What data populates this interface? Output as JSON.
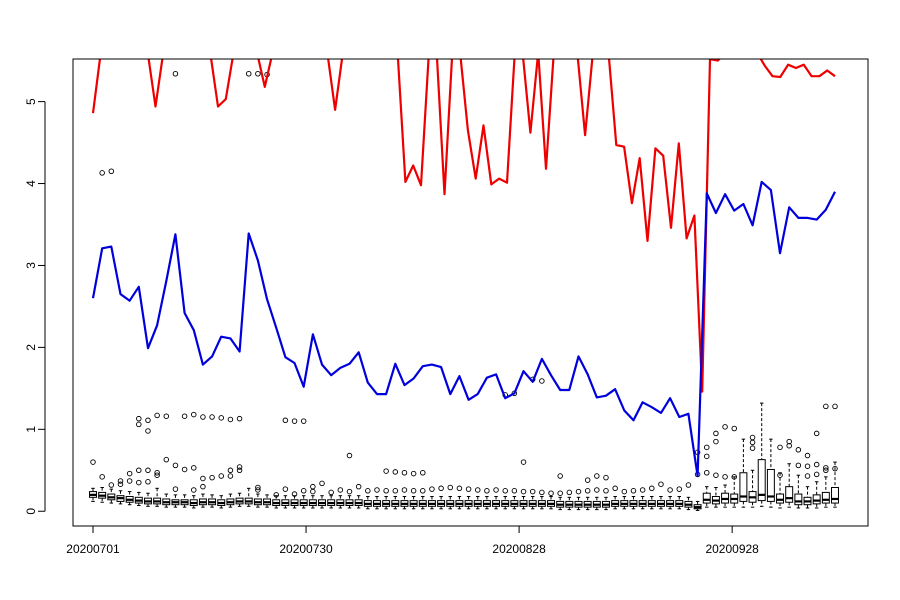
{
  "chart_data": {
    "type": "line",
    "title": "",
    "xlabel": "",
    "ylabel": "",
    "ylim": [
      -0.18,
      5.52
    ],
    "xlim": [
      1,
      102
    ],
    "x_tick_labels": [
      {
        "x": 1,
        "label": "20200701"
      },
      {
        "x": 30,
        "label": "20200730"
      },
      {
        "x": 59,
        "label": "20200828"
      },
      {
        "x": 88,
        "label": "20200928"
      }
    ],
    "y_ticks": [
      0,
      1,
      2,
      3,
      4,
      5
    ],
    "grid": false,
    "colors": {
      "red_series": "#ee0000",
      "blue_series": "#0000dd",
      "boxes": "#000000"
    },
    "series": [
      {
        "color": "#ee0000",
        "values": [
          4.86,
          5.6,
          5.6,
          5.6,
          5.6,
          5.6,
          5.6,
          5.6,
          4.94,
          5.6,
          5.6,
          5.6,
          5.6,
          5.6,
          5.6,
          5.6,
          4.94,
          5.03,
          5.6,
          5.6,
          5.6,
          5.6,
          5.18,
          5.6,
          5.6,
          5.6,
          5.6,
          5.6,
          5.6,
          5.6,
          5.6,
          4.9,
          5.6,
          5.6,
          5.6,
          5.6,
          5.6,
          5.6,
          5.6,
          5.6,
          4.02,
          4.22,
          3.98,
          5.6,
          5.6,
          3.87,
          5.6,
          5.6,
          4.65,
          4.06,
          4.71,
          3.99,
          4.06,
          4.01,
          5.6,
          5.6,
          4.62,
          5.6,
          4.18,
          5.6,
          5.6,
          5.6,
          5.6,
          4.59,
          5.6,
          5.6,
          5.6,
          4.47,
          4.45,
          3.76,
          4.31,
          3.3,
          4.43,
          4.34,
          3.46,
          4.49,
          3.33,
          3.61,
          1.46,
          5.52,
          5.5,
          5.6,
          5.6,
          5.53,
          5.6,
          5.6,
          5.44,
          5.31,
          5.3,
          5.45,
          5.41,
          5.45,
          5.31,
          5.31,
          5.38,
          5.31
        ]
      },
      {
        "color": "#0000dd",
        "values": [
          2.6,
          3.21,
          3.23,
          2.65,
          2.57,
          2.74,
          1.99,
          2.27,
          2.81,
          3.38,
          2.42,
          2.21,
          1.79,
          1.89,
          2.13,
          2.11,
          1.95,
          3.39,
          3.06,
          2.59,
          2.24,
          1.88,
          1.81,
          1.52,
          2.16,
          1.79,
          1.66,
          1.75,
          1.8,
          1.94,
          1.57,
          1.43,
          1.43,
          1.8,
          1.54,
          1.62,
          1.77,
          1.79,
          1.76,
          1.43,
          1.65,
          1.36,
          1.43,
          1.63,
          1.67,
          1.38,
          1.44,
          1.71,
          1.58,
          1.86,
          1.66,
          1.48,
          1.48,
          1.89,
          1.67,
          1.39,
          1.41,
          1.49,
          1.23,
          1.11,
          1.33,
          1.27,
          1.2,
          1.38,
          1.15,
          1.19,
          0.43,
          3.88,
          3.64,
          3.87,
          3.67,
          3.75,
          3.49,
          4.02,
          3.92,
          3.15,
          3.71,
          3.58,
          3.58,
          3.56,
          3.68,
          3.9
        ]
      }
    ],
    "boxes": [
      {
        "median": 0.2,
        "q1": 0.17,
        "q3": 0.24,
        "lo": 0.12,
        "hi": 0.28,
        "out": [
          0.6
        ]
      },
      {
        "median": 0.19,
        "q1": 0.16,
        "q3": 0.23,
        "lo": 0.11,
        "hi": 0.29,
        "out": [
          4.13,
          0.42
        ]
      },
      {
        "median": 0.17,
        "q1": 0.14,
        "q3": 0.21,
        "lo": 0.1,
        "hi": 0.27,
        "out": [
          4.15,
          0.32
        ]
      },
      {
        "median": 0.16,
        "q1": 0.12,
        "q3": 0.19,
        "lo": 0.09,
        "hi": 0.25,
        "out": [
          0.33,
          0.37
        ]
      },
      {
        "median": 0.14,
        "q1": 0.11,
        "q3": 0.18,
        "lo": 0.08,
        "hi": 0.24,
        "out": [
          0.46,
          0.37
        ]
      },
      {
        "median": 0.13,
        "q1": 0.1,
        "q3": 0.17,
        "lo": 0.07,
        "hi": 0.23,
        "out": [
          1.13,
          1.06,
          0.5,
          0.35
        ]
      },
      {
        "median": 0.12,
        "q1": 0.09,
        "q3": 0.16,
        "lo": 0.06,
        "hi": 0.22,
        "out": [
          1.11,
          0.98,
          0.5,
          0.36
        ]
      },
      {
        "median": 0.12,
        "q1": 0.09,
        "q3": 0.16,
        "lo": 0.06,
        "hi": 0.28,
        "out": [
          1.17,
          0.44,
          0.47
        ]
      },
      {
        "median": 0.11,
        "q1": 0.08,
        "q3": 0.15,
        "lo": 0.05,
        "hi": 0.21,
        "out": [
          1.16,
          0.63
        ]
      },
      {
        "median": 0.11,
        "q1": 0.08,
        "q3": 0.14,
        "lo": 0.05,
        "hi": 0.2,
        "out": [
          5.34,
          0.56,
          0.27
        ]
      },
      {
        "median": 0.11,
        "q1": 0.08,
        "q3": 0.14,
        "lo": 0.05,
        "hi": 0.2,
        "out": [
          1.16,
          0.51
        ]
      },
      {
        "median": 0.1,
        "q1": 0.07,
        "q3": 0.14,
        "lo": 0.04,
        "hi": 0.19,
        "out": [
          1.18,
          0.53,
          0.26
        ]
      },
      {
        "median": 0.11,
        "q1": 0.08,
        "q3": 0.15,
        "lo": 0.05,
        "hi": 0.21,
        "out": [
          1.15,
          0.4,
          0.3
        ]
      },
      {
        "median": 0.11,
        "q1": 0.08,
        "q3": 0.15,
        "lo": 0.05,
        "hi": 0.2,
        "out": [
          1.15,
          0.41
        ]
      },
      {
        "median": 0.1,
        "q1": 0.07,
        "q3": 0.14,
        "lo": 0.04,
        "hi": 0.19,
        "out": [
          1.14,
          0.43
        ]
      },
      {
        "median": 0.11,
        "q1": 0.08,
        "q3": 0.15,
        "lo": 0.05,
        "hi": 0.21,
        "out": [
          1.12,
          0.5,
          0.43
        ]
      },
      {
        "median": 0.12,
        "q1": 0.09,
        "q3": 0.16,
        "lo": 0.06,
        "hi": 0.22,
        "out": [
          1.13,
          0.54,
          0.5
        ]
      },
      {
        "median": 0.12,
        "q1": 0.09,
        "q3": 0.16,
        "lo": 0.06,
        "hi": 0.28,
        "out": [
          5.34
        ]
      },
      {
        "median": 0.11,
        "q1": 0.08,
        "q3": 0.15,
        "lo": 0.05,
        "hi": 0.21,
        "out": [
          5.34,
          0.29,
          0.26
        ]
      },
      {
        "median": 0.11,
        "q1": 0.08,
        "q3": 0.15,
        "lo": 0.05,
        "hi": 0.2,
        "out": [
          5.33
        ]
      },
      {
        "median": 0.1,
        "q1": 0.07,
        "q3": 0.14,
        "lo": 0.04,
        "hi": 0.19,
        "out": [
          0.2
        ]
      },
      {
        "median": 0.1,
        "q1": 0.07,
        "q3": 0.14,
        "lo": 0.04,
        "hi": 0.19,
        "out": [
          1.11,
          0.27
        ]
      },
      {
        "median": 0.1,
        "q1": 0.07,
        "q3": 0.14,
        "lo": 0.04,
        "hi": 0.19,
        "out": [
          1.1,
          0.21
        ]
      },
      {
        "median": 0.1,
        "q1": 0.07,
        "q3": 0.14,
        "lo": 0.04,
        "hi": 0.19,
        "out": [
          1.1,
          0.25
        ]
      },
      {
        "median": 0.1,
        "q1": 0.07,
        "q3": 0.14,
        "lo": 0.04,
        "hi": 0.19,
        "out": [
          0.3,
          0.24
        ]
      },
      {
        "median": 0.1,
        "q1": 0.07,
        "q3": 0.14,
        "lo": 0.04,
        "hi": 0.19,
        "out": [
          0.34
        ]
      },
      {
        "median": 0.1,
        "q1": 0.07,
        "q3": 0.14,
        "lo": 0.04,
        "hi": 0.19,
        "out": [
          0.23
        ]
      },
      {
        "median": 0.1,
        "q1": 0.07,
        "q3": 0.14,
        "lo": 0.04,
        "hi": 0.19,
        "out": [
          0.26
        ]
      },
      {
        "median": 0.1,
        "q1": 0.07,
        "q3": 0.14,
        "lo": 0.04,
        "hi": 0.19,
        "out": [
          0.68,
          0.24
        ]
      },
      {
        "median": 0.1,
        "q1": 0.07,
        "q3": 0.14,
        "lo": 0.04,
        "hi": 0.19,
        "out": [
          0.3
        ]
      },
      {
        "median": 0.09,
        "q1": 0.06,
        "q3": 0.13,
        "lo": 0.03,
        "hi": 0.18,
        "out": [
          0.25
        ]
      },
      {
        "median": 0.09,
        "q1": 0.06,
        "q3": 0.13,
        "lo": 0.03,
        "hi": 0.18,
        "out": [
          0.26
        ]
      },
      {
        "median": 0.09,
        "q1": 0.06,
        "q3": 0.13,
        "lo": 0.03,
        "hi": 0.18,
        "out": [
          0.49,
          0.25
        ]
      },
      {
        "median": 0.09,
        "q1": 0.06,
        "q3": 0.13,
        "lo": 0.03,
        "hi": 0.18,
        "out": [
          0.48,
          0.25
        ]
      },
      {
        "median": 0.09,
        "q1": 0.06,
        "q3": 0.13,
        "lo": 0.03,
        "hi": 0.18,
        "out": [
          0.47,
          0.26
        ]
      },
      {
        "median": 0.09,
        "q1": 0.06,
        "q3": 0.13,
        "lo": 0.03,
        "hi": 0.18,
        "out": [
          0.46,
          0.25
        ]
      },
      {
        "median": 0.09,
        "q1": 0.06,
        "q3": 0.13,
        "lo": 0.03,
        "hi": 0.18,
        "out": [
          0.47,
          0.25
        ]
      },
      {
        "median": 0.09,
        "q1": 0.06,
        "q3": 0.13,
        "lo": 0.03,
        "hi": 0.18,
        "out": [
          0.27
        ]
      },
      {
        "median": 0.09,
        "q1": 0.06,
        "q3": 0.13,
        "lo": 0.03,
        "hi": 0.18,
        "out": [
          0.28
        ]
      },
      {
        "median": 0.09,
        "q1": 0.06,
        "q3": 0.13,
        "lo": 0.03,
        "hi": 0.18,
        "out": [
          0.29
        ]
      },
      {
        "median": 0.09,
        "q1": 0.06,
        "q3": 0.13,
        "lo": 0.03,
        "hi": 0.18,
        "out": [
          0.28
        ]
      },
      {
        "median": 0.09,
        "q1": 0.06,
        "q3": 0.13,
        "lo": 0.03,
        "hi": 0.18,
        "out": [
          0.27
        ]
      },
      {
        "median": 0.09,
        "q1": 0.06,
        "q3": 0.13,
        "lo": 0.03,
        "hi": 0.18,
        "out": [
          0.26
        ]
      },
      {
        "median": 0.09,
        "q1": 0.06,
        "q3": 0.13,
        "lo": 0.03,
        "hi": 0.18,
        "out": [
          0.25
        ]
      },
      {
        "median": 0.09,
        "q1": 0.06,
        "q3": 0.13,
        "lo": 0.03,
        "hi": 0.18,
        "out": [
          0.26
        ]
      },
      {
        "median": 0.09,
        "q1": 0.06,
        "q3": 0.13,
        "lo": 0.03,
        "hi": 0.18,
        "out": [
          1.42,
          0.25
        ]
      },
      {
        "median": 0.09,
        "q1": 0.06,
        "q3": 0.13,
        "lo": 0.03,
        "hi": 0.18,
        "out": [
          1.44,
          0.25
        ]
      },
      {
        "median": 0.09,
        "q1": 0.06,
        "q3": 0.13,
        "lo": 0.03,
        "hi": 0.18,
        "out": [
          0.6,
          0.24
        ]
      },
      {
        "median": 0.09,
        "q1": 0.06,
        "q3": 0.13,
        "lo": 0.03,
        "hi": 0.18,
        "out": [
          1.61,
          0.24
        ]
      },
      {
        "median": 0.09,
        "q1": 0.06,
        "q3": 0.13,
        "lo": 0.03,
        "hi": 0.18,
        "out": [
          1.59,
          0.23
        ]
      },
      {
        "median": 0.09,
        "q1": 0.06,
        "q3": 0.13,
        "lo": 0.03,
        "hi": 0.18,
        "out": [
          0.22
        ]
      },
      {
        "median": 0.08,
        "q1": 0.05,
        "q3": 0.12,
        "lo": 0.02,
        "hi": 0.17,
        "out": [
          0.43,
          0.22
        ]
      },
      {
        "median": 0.08,
        "q1": 0.05,
        "q3": 0.12,
        "lo": 0.02,
        "hi": 0.17,
        "out": [
          0.23
        ]
      },
      {
        "median": 0.08,
        "q1": 0.05,
        "q3": 0.12,
        "lo": 0.02,
        "hi": 0.17,
        "out": [
          0.24
        ]
      },
      {
        "median": 0.08,
        "q1": 0.05,
        "q3": 0.12,
        "lo": 0.02,
        "hi": 0.17,
        "out": [
          0.38,
          0.25
        ]
      },
      {
        "median": 0.08,
        "q1": 0.05,
        "q3": 0.12,
        "lo": 0.02,
        "hi": 0.17,
        "out": [
          0.43,
          0.26
        ]
      },
      {
        "median": 0.08,
        "q1": 0.05,
        "q3": 0.12,
        "lo": 0.02,
        "hi": 0.17,
        "out": [
          0.41,
          0.25
        ]
      },
      {
        "median": 0.09,
        "q1": 0.06,
        "q3": 0.13,
        "lo": 0.03,
        "hi": 0.18,
        "out": [
          0.28
        ]
      },
      {
        "median": 0.09,
        "q1": 0.06,
        "q3": 0.13,
        "lo": 0.03,
        "hi": 0.18,
        "out": [
          0.24
        ]
      },
      {
        "median": 0.09,
        "q1": 0.06,
        "q3": 0.13,
        "lo": 0.03,
        "hi": 0.18,
        "out": [
          0.25
        ]
      },
      {
        "median": 0.09,
        "q1": 0.06,
        "q3": 0.13,
        "lo": 0.03,
        "hi": 0.18,
        "out": [
          0.26
        ]
      },
      {
        "median": 0.09,
        "q1": 0.06,
        "q3": 0.13,
        "lo": 0.03,
        "hi": 0.18,
        "out": [
          0.28
        ]
      },
      {
        "median": 0.09,
        "q1": 0.06,
        "q3": 0.13,
        "lo": 0.03,
        "hi": 0.18,
        "out": [
          0.33
        ]
      },
      {
        "median": 0.09,
        "q1": 0.06,
        "q3": 0.13,
        "lo": 0.03,
        "hi": 0.18,
        "out": [
          0.26
        ]
      },
      {
        "median": 0.09,
        "q1": 0.06,
        "q3": 0.13,
        "lo": 0.03,
        "hi": 0.18,
        "out": [
          0.27
        ]
      },
      {
        "median": 0.08,
        "q1": 0.05,
        "q3": 0.12,
        "lo": 0.02,
        "hi": 0.17,
        "out": [
          0.32
        ]
      },
      {
        "median": 0.05,
        "q1": 0.03,
        "q3": 0.08,
        "lo": 0.01,
        "hi": 0.12,
        "out": [
          0.72,
          0.45
        ]
      },
      {
        "median": 0.14,
        "q1": 0.1,
        "q3": 0.22,
        "lo": 0.05,
        "hi": 0.3,
        "out": [
          0.78,
          0.67,
          0.47
        ]
      },
      {
        "median": 0.13,
        "q1": 0.09,
        "q3": 0.18,
        "lo": 0.05,
        "hi": 0.29,
        "out": [
          0.95,
          0.85,
          0.44
        ]
      },
      {
        "median": 0.15,
        "q1": 0.1,
        "q3": 0.22,
        "lo": 0.05,
        "hi": 0.32,
        "out": [
          1.03,
          0.42
        ]
      },
      {
        "median": 0.15,
        "q1": 0.1,
        "q3": 0.21,
        "lo": 0.05,
        "hi": 0.42,
        "out": [
          1.01,
          0.42
        ]
      },
      {
        "median": 0.18,
        "q1": 0.12,
        "q3": 0.47,
        "lo": 0.05,
        "hi": 0.88,
        "out": []
      },
      {
        "median": 0.17,
        "q1": 0.11,
        "q3": 0.24,
        "lo": 0.05,
        "hi": 0.5,
        "out": [
          0.9,
          0.84,
          0.77
        ]
      },
      {
        "median": 0.2,
        "q1": 0.13,
        "q3": 0.63,
        "lo": 0.06,
        "hi": 1.32,
        "out": []
      },
      {
        "median": 0.18,
        "q1": 0.12,
        "q3": 0.51,
        "lo": 0.05,
        "hi": 0.88,
        "out": []
      },
      {
        "median": 0.14,
        "q1": 0.1,
        "q3": 0.21,
        "lo": 0.04,
        "hi": 0.47,
        "out": [
          0.78,
          0.44
        ]
      },
      {
        "median": 0.16,
        "q1": 0.11,
        "q3": 0.3,
        "lo": 0.05,
        "hi": 0.58,
        "out": [
          0.85,
          0.8
        ]
      },
      {
        "median": 0.12,
        "q1": 0.08,
        "q3": 0.21,
        "lo": 0.04,
        "hi": 0.44,
        "out": [
          0.75,
          0.56
        ]
      },
      {
        "median": 0.12,
        "q1": 0.08,
        "q3": 0.17,
        "lo": 0.04,
        "hi": 0.3,
        "out": [
          0.68,
          0.55,
          0.43
        ]
      },
      {
        "median": 0.13,
        "q1": 0.09,
        "q3": 0.2,
        "lo": 0.04,
        "hi": 0.36,
        "out": [
          0.95,
          0.57,
          0.45
        ]
      },
      {
        "median": 0.14,
        "q1": 0.1,
        "q3": 0.23,
        "lo": 0.05,
        "hi": 0.42,
        "out": [
          1.28,
          0.53,
          0.5
        ]
      },
      {
        "median": 0.15,
        "q1": 0.1,
        "q3": 0.29,
        "lo": 0.05,
        "hi": 0.6,
        "out": [
          1.28,
          0.52
        ]
      }
    ]
  }
}
